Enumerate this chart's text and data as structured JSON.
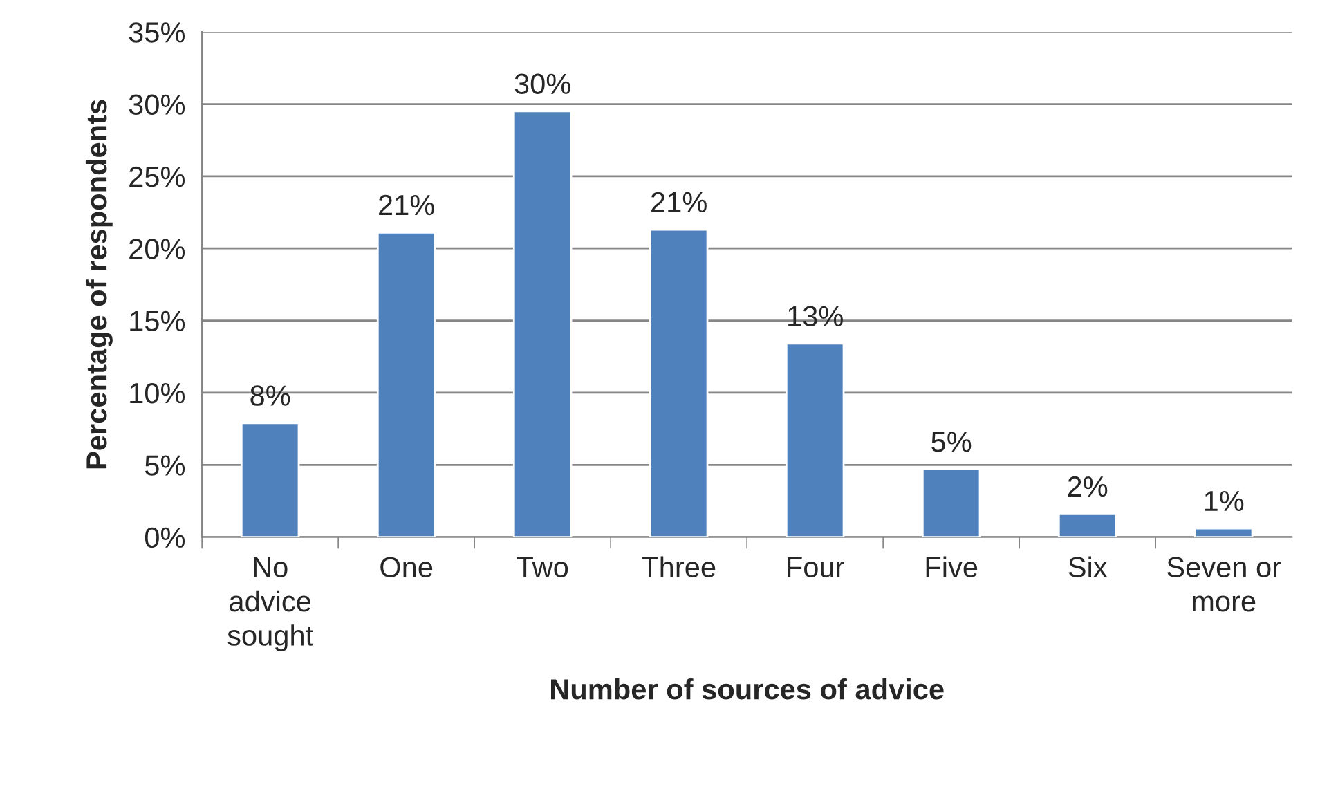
{
  "chart_data": {
    "type": "bar",
    "xlabel": "Number of sources of advice",
    "ylabel": "Percentage of respondents",
    "categories": [
      "No\nadvice\nsought",
      "One",
      "Two",
      "Three",
      "Four",
      "Five",
      "Six",
      "Seven or\nmore"
    ],
    "series": [
      {
        "color": "#4f81bd",
        "values": [
          7.9,
          21.1,
          29.5,
          21.3,
          13.4,
          4.7,
          1.6,
          0.6
        ],
        "value_labels": [
          "8%",
          "21%",
          "30%",
          "21%",
          "13%",
          "5%",
          "2%",
          "1%"
        ]
      }
    ],
    "ylim": [
      0,
      35
    ],
    "yticks": [
      {
        "value": 0,
        "label": "0%"
      },
      {
        "value": 5,
        "label": "5%"
      },
      {
        "value": 10,
        "label": "10%"
      },
      {
        "value": 15,
        "label": "15%"
      },
      {
        "value": 20,
        "label": "20%"
      },
      {
        "value": 25,
        "label": "25%"
      },
      {
        "value": 30,
        "label": "30%"
      },
      {
        "value": 35,
        "label": "35%"
      }
    ],
    "grid": "y",
    "legend": false
  }
}
